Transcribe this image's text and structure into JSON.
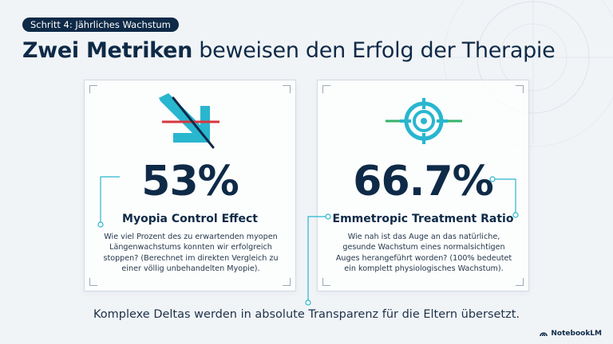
{
  "badge": "Schritt 4: Jährliches Wachstum",
  "headline": {
    "strong": "Zwei Metriken",
    "rest": " beweisen den Erfolg der Therapie"
  },
  "cards": [
    {
      "icon": "arrow-down-blocked-icon",
      "value": "53%",
      "title": "Myopia Control Effect",
      "description": "Wie viel Prozent des zu erwartenden myopen Längenwachstums konnten wir erfolgreich stoppen? (Berechnet im direkten Vergleich zu einer völlig unbehandelten Myopie)."
    },
    {
      "icon": "target-crosshair-icon",
      "value": "66.7%",
      "title": "Emmetropic Treatment Ratio",
      "description": "Wie nah ist das Auge an das natürliche, gesunde Wachstum eines normalsichtigen Auges herangeführt worden? (100% bedeutet ein komplett physiologisches Wachstum)."
    }
  ],
  "footer": "Komplexe Deltas werden in absolute Transparenz für die Eltern übersetzt.",
  "brand": "NotebookLM",
  "colors": {
    "navy": "#0e2a47",
    "cyan": "#29b6cf",
    "red": "#d9363e",
    "green": "#34b36a",
    "background": "#f1f4f7"
  }
}
